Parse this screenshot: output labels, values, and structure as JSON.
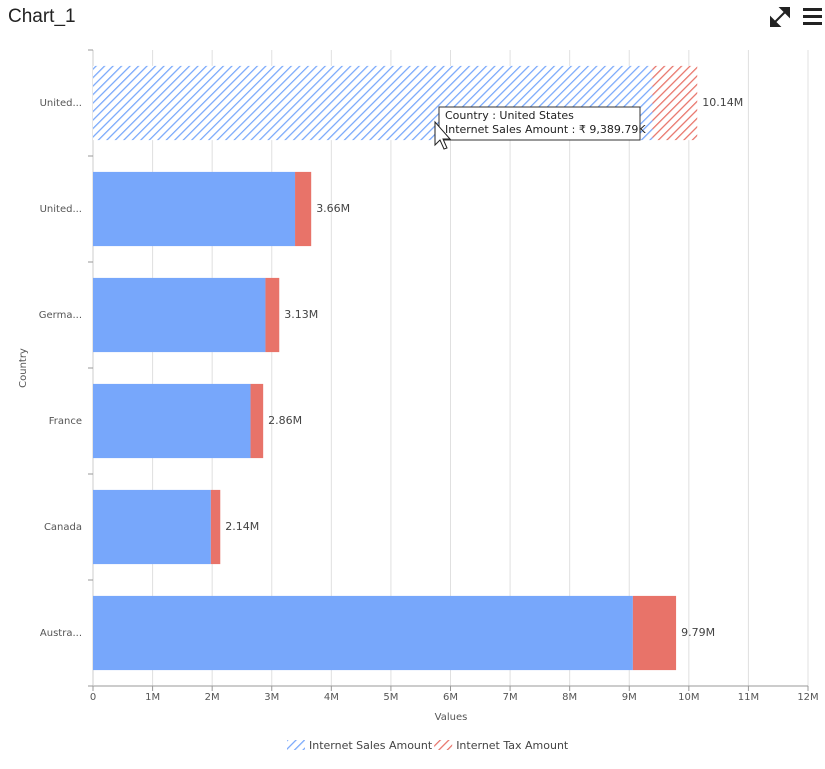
{
  "chart_data": {
    "type": "stacked_bar_horizontal",
    "title": "Chart_1",
    "x_label": "Values",
    "y_label": "Country",
    "categories": [
      "United...",
      "United...",
      "Germa...",
      "France",
      "Canada",
      "Austra..."
    ],
    "series": [
      {
        "name": "Internet Sales Amount",
        "color": "#77a7fb",
        "values": [
          9389790,
          3391000,
          2894000,
          2644000,
          1978000,
          9061000
        ]
      },
      {
        "name": "Internet Tax Amount",
        "color": "#e87369",
        "values": [
          751183,
          271000,
          232000,
          212000,
          158000,
          725000
        ]
      }
    ],
    "total_labels": [
      "10.14M",
      "3.66M",
      "3.13M",
      "2.86M",
      "2.14M",
      "9.79M"
    ],
    "xlim": [
      0,
      12000000
    ],
    "xticks": [
      0,
      {
        "value": 1000000,
        "label": "1M"
      },
      {
        "value": 2000000,
        "label": "2M"
      },
      {
        "value": 3000000,
        "label": "3M"
      },
      {
        "value": 4000000,
        "label": "4M"
      },
      {
        "value": 5000000,
        "label": "5M"
      },
      {
        "value": 6000000,
        "label": "6M"
      },
      {
        "value": 7000000,
        "label": "7M"
      },
      {
        "value": 8000000,
        "label": "8M"
      },
      {
        "value": 9000000,
        "label": "9M"
      },
      {
        "value": 10000000,
        "label": "10M"
      },
      {
        "value": 11000000,
        "label": "11M"
      },
      {
        "value": 12000000,
        "label": "12M"
      }
    ],
    "grid": true,
    "hatched_index": 0,
    "legend": "bottom",
    "tooltip": [
      "Country : United States",
      "Internet Sales Amount : ₹ 9,389.79K"
    ]
  }
}
